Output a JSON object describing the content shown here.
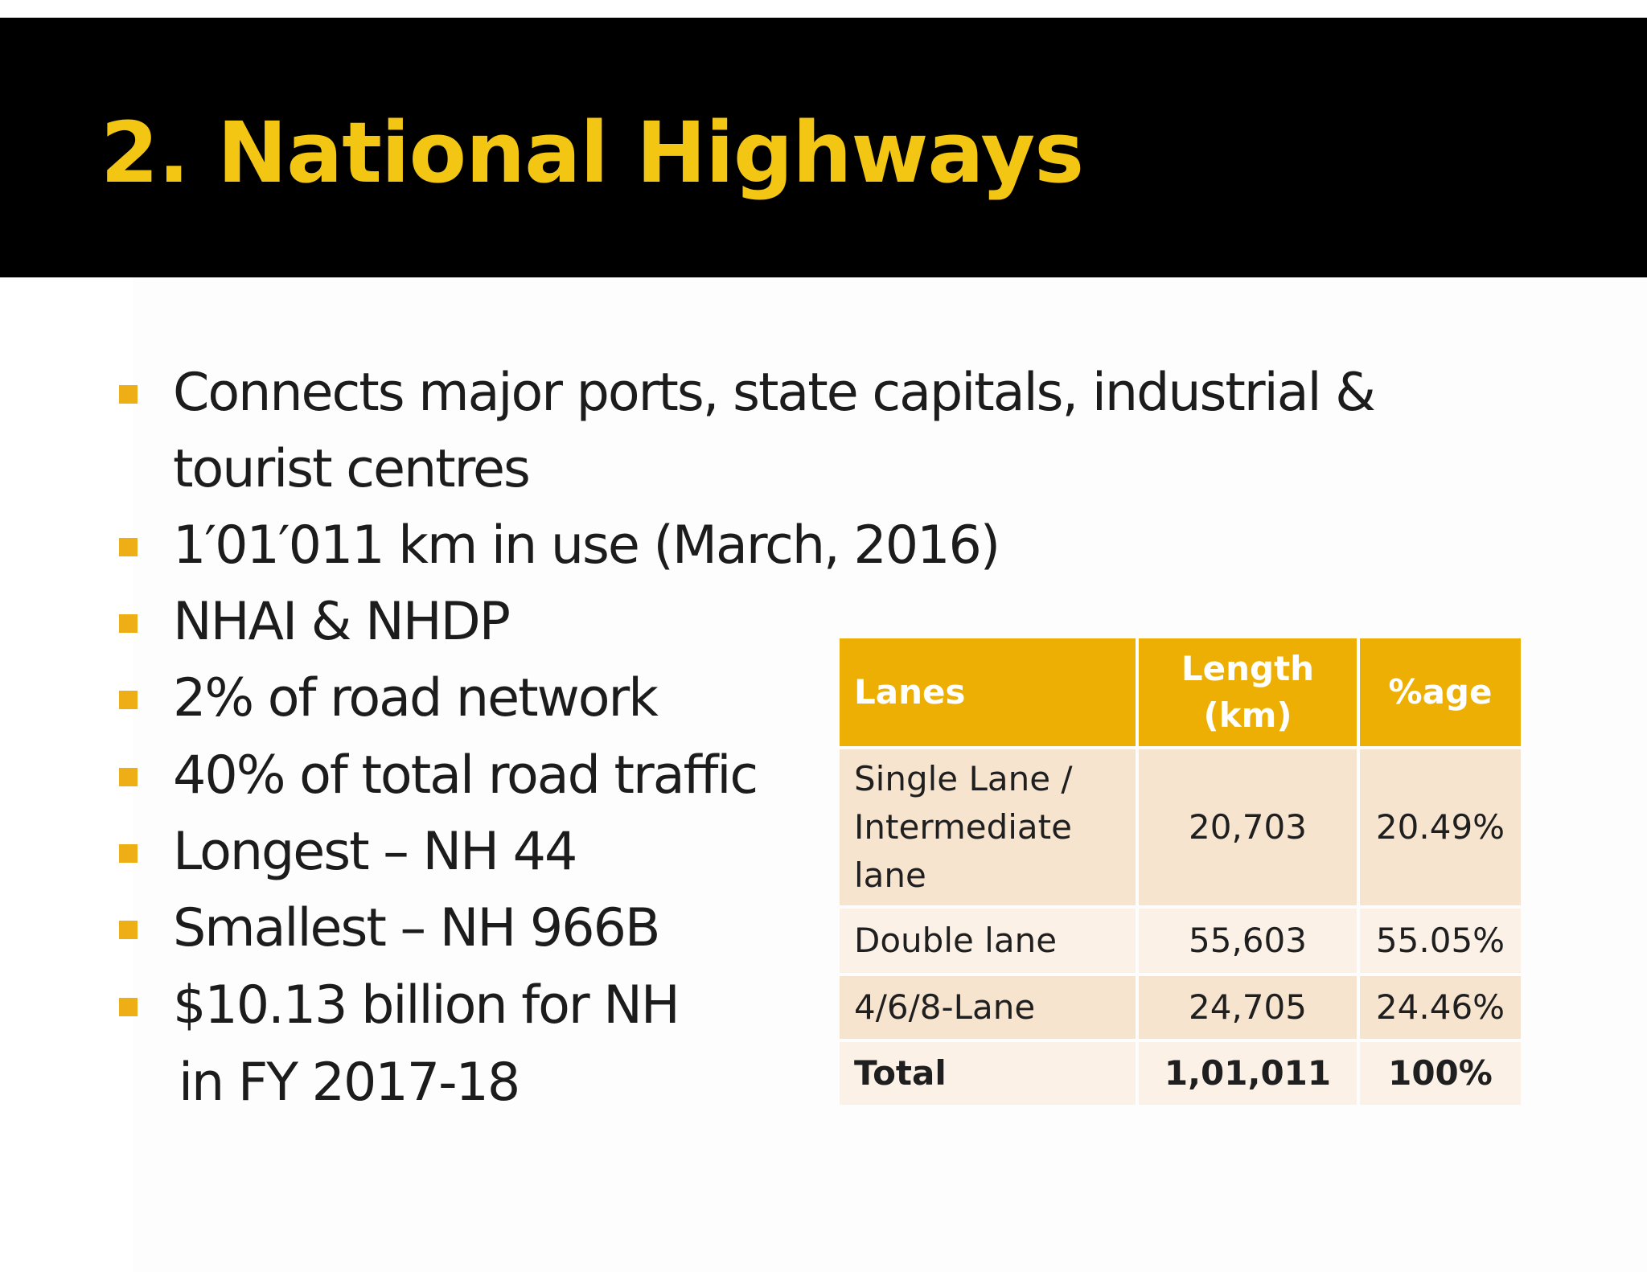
{
  "slide": {
    "title": "2. National Highways"
  },
  "bullets": [
    "Connects major ports, state capitals, industrial &",
    "1′01′011 km in use (March, 2016)",
    "NHAI & NHDP",
    "2% of road network",
    "40% of total road traffic",
    "Longest – NH 44",
    "Smallest – NH 966B",
    "$10.13 billion for NH"
  ],
  "bullet_continuations": {
    "first": "tourist centres",
    "last": "in FY 2017-18"
  },
  "table": {
    "headers": {
      "lanes": "Lanes",
      "length_line1": "Length",
      "length_line2": "(km)",
      "percentage": "%age"
    },
    "rows": [
      {
        "lane_line1": "Single Lane /",
        "lane_line2": "Intermediate",
        "lane_line3": "lane",
        "length": "20,703",
        "percentage": "20.49%"
      },
      {
        "lane": "Double lane",
        "length": "55,603",
        "percentage": "55.05%"
      },
      {
        "lane": "4/6/8-Lane",
        "length": "24,705",
        "percentage": "24.46%"
      }
    ],
    "total": {
      "lane": "Total",
      "length": "1,01,011",
      "percentage": "100%"
    }
  },
  "colors": {
    "title": "#f3c613",
    "title_band": "#000000",
    "bullet_marker": "#eeaf16",
    "table_header": "#eeaf05",
    "table_row_odd": "#f7e4cf",
    "table_row_even": "#fbf1e7"
  }
}
